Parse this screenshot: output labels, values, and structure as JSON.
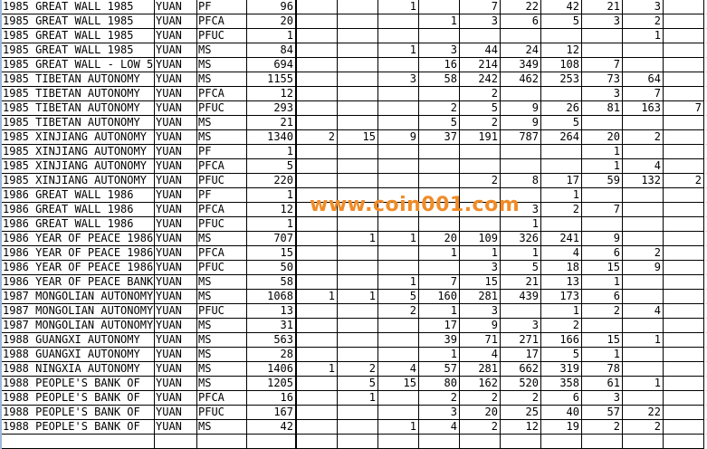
{
  "watermark": "www.coin001.com",
  "watermark_color": "#f08c28",
  "rows": [
    {
      "name": "1985 GREAT WALL 1985",
      "unit": "YUAN",
      "grade": "PF",
      "total": "96",
      "cols": [
        "",
        "",
        "1",
        "",
        "7",
        "22",
        "42",
        "21",
        "3",
        ""
      ]
    },
    {
      "name": "1985 GREAT WALL 1985",
      "unit": "YUAN",
      "grade": "PFCA",
      "total": "20",
      "cols": [
        "",
        "",
        "",
        "1",
        "3",
        "6",
        "5",
        "3",
        "2",
        ""
      ]
    },
    {
      "name": "1985 GREAT WALL 1985",
      "unit": "YUAN",
      "grade": "PFUC",
      "total": "1",
      "cols": [
        "",
        "",
        "",
        "",
        "",
        "",
        "",
        "",
        "1",
        ""
      ]
    },
    {
      "name": "1985 GREAT WALL 1985",
      "unit": "YUAN",
      "grade": "MS",
      "total": "84",
      "cols": [
        "",
        "",
        "1",
        "3",
        "44",
        "24",
        "12",
        "",
        "",
        ""
      ]
    },
    {
      "name": "1985 GREAT WALL - LOW 5",
      "unit": "YUAN",
      "grade": "MS",
      "total": "694",
      "cols": [
        "",
        "",
        "",
        "16",
        "214",
        "349",
        "108",
        "7",
        "",
        ""
      ]
    },
    {
      "name": "1985 TIBETAN AUTONOMY",
      "unit": "YUAN",
      "grade": "MS",
      "total": "1155",
      "cols": [
        "",
        "",
        "3",
        "58",
        "242",
        "462",
        "253",
        "73",
        "64",
        ""
      ]
    },
    {
      "name": "1985 TIBETAN AUTONOMY",
      "unit": "YUAN",
      "grade": "PFCA",
      "total": "12",
      "cols": [
        "",
        "",
        "",
        "",
        "2",
        "",
        "",
        "3",
        "7",
        ""
      ]
    },
    {
      "name": "1985 TIBETAN AUTONOMY",
      "unit": "YUAN",
      "grade": "PFUC",
      "total": "293",
      "cols": [
        "",
        "",
        "",
        "2",
        "5",
        "9",
        "26",
        "81",
        "163",
        "7"
      ]
    },
    {
      "name": "1985 TIBETAN AUTONOMY",
      "unit": "YUAN",
      "grade": "MS",
      "total": "21",
      "cols": [
        "",
        "",
        "",
        "5",
        "2",
        "9",
        "5",
        "",
        "",
        ""
      ]
    },
    {
      "name": "1985 XINJIANG AUTONOMY",
      "unit": "YUAN",
      "grade": "MS",
      "total": "1340",
      "cols": [
        "2",
        "15",
        "9",
        "37",
        "191",
        "787",
        "264",
        "20",
        "2",
        ""
      ]
    },
    {
      "name": "1985 XINJIANG AUTONOMY",
      "unit": "YUAN",
      "grade": "PF",
      "total": "1",
      "cols": [
        "",
        "",
        "",
        "",
        "",
        "",
        "",
        "1",
        "",
        ""
      ]
    },
    {
      "name": "1985 XINJIANG AUTONOMY",
      "unit": "YUAN",
      "grade": "PFCA",
      "total": "5",
      "cols": [
        "",
        "",
        "",
        "",
        "",
        "",
        "",
        "1",
        "4",
        ""
      ]
    },
    {
      "name": "1985 XINJIANG AUTONOMY",
      "unit": "YUAN",
      "grade": "PFUC",
      "total": "220",
      "cols": [
        "",
        "",
        "",
        "",
        "2",
        "8",
        "17",
        "59",
        "132",
        "2"
      ]
    },
    {
      "name": "1986 GREAT WALL 1986",
      "unit": "YUAN",
      "grade": "PF",
      "total": "1",
      "cols": [
        "",
        "",
        "",
        "",
        "",
        "",
        "1",
        "",
        "",
        ""
      ]
    },
    {
      "name": "1986 GREAT WALL 1986",
      "unit": "YUAN",
      "grade": "PFCA",
      "total": "12",
      "cols": [
        "",
        "",
        "",
        "",
        "",
        "3",
        "2",
        "7",
        "",
        ""
      ]
    },
    {
      "name": "1986 GREAT WALL 1986",
      "unit": "YUAN",
      "grade": "PFUC",
      "total": "1",
      "cols": [
        "",
        "",
        "",
        "",
        "",
        "1",
        "",
        "",
        "",
        ""
      ]
    },
    {
      "name": "1986 YEAR OF PEACE 1986",
      "unit": "YUAN",
      "grade": "MS",
      "total": "707",
      "cols": [
        "",
        "1",
        "1",
        "20",
        "109",
        "326",
        "241",
        "9",
        "",
        ""
      ]
    },
    {
      "name": "1986 YEAR OF PEACE 1986",
      "unit": "YUAN",
      "grade": "PFCA",
      "total": "15",
      "cols": [
        "",
        "",
        "",
        "1",
        "1",
        "1",
        "4",
        "6",
        "2",
        ""
      ]
    },
    {
      "name": "1986 YEAR OF PEACE 1986",
      "unit": "YUAN",
      "grade": "PFUC",
      "total": "50",
      "cols": [
        "",
        "",
        "",
        "",
        "3",
        "5",
        "18",
        "15",
        "9",
        ""
      ]
    },
    {
      "name": "1986 YEAR OF PEACE BANK",
      "unit": "YUAN",
      "grade": "MS",
      "total": "58",
      "cols": [
        "",
        "",
        "1",
        "7",
        "15",
        "21",
        "13",
        "1",
        "",
        ""
      ]
    },
    {
      "name": "1987 MONGOLIAN AUTONOMY",
      "unit": "YUAN",
      "grade": "MS",
      "total": "1068",
      "cols": [
        "1",
        "1",
        "5",
        "160",
        "281",
        "439",
        "173",
        "6",
        "",
        ""
      ]
    },
    {
      "name": "1987 MONGOLIAN AUTONOMY",
      "unit": "YUAN",
      "grade": "PFUC",
      "total": "13",
      "cols": [
        "",
        "",
        "2",
        "1",
        "3",
        "",
        "1",
        "2",
        "4",
        ""
      ]
    },
    {
      "name": "1987 MONGOLIAN AUTONOMY",
      "unit": "YUAN",
      "grade": "MS",
      "total": "31",
      "cols": [
        "",
        "",
        "",
        "17",
        "9",
        "3",
        "2",
        "",
        "",
        ""
      ]
    },
    {
      "name": "1988 GUANGXI AUTONOMY",
      "unit": "YUAN",
      "grade": "MS",
      "total": "563",
      "cols": [
        "",
        "",
        "",
        "39",
        "71",
        "271",
        "166",
        "15",
        "1",
        ""
      ]
    },
    {
      "name": "1988 GUANGXI AUTONOMY",
      "unit": "YUAN",
      "grade": "MS",
      "total": "28",
      "cols": [
        "",
        "",
        "",
        "1",
        "4",
        "17",
        "5",
        "1",
        "",
        ""
      ]
    },
    {
      "name": "1988 NINGXIA AUTONOMY",
      "unit": "YUAN",
      "grade": "MS",
      "total": "1406",
      "cols": [
        "1",
        "2",
        "4",
        "57",
        "281",
        "662",
        "319",
        "78",
        "",
        ""
      ]
    },
    {
      "name": "1988 PEOPLE'S BANK OF",
      "unit": "YUAN",
      "grade": "MS",
      "total": "1205",
      "cols": [
        "",
        "5",
        "15",
        "80",
        "162",
        "520",
        "358",
        "61",
        "1",
        ""
      ]
    },
    {
      "name": "1988 PEOPLE'S BANK OF",
      "unit": "YUAN",
      "grade": "PFCA",
      "total": "16",
      "cols": [
        "",
        "1",
        "",
        "2",
        "2",
        "2",
        "6",
        "3",
        "",
        ""
      ]
    },
    {
      "name": "1988 PEOPLE'S BANK OF",
      "unit": "YUAN",
      "grade": "PFUC",
      "total": "167",
      "cols": [
        "",
        "",
        "",
        "3",
        "20",
        "25",
        "40",
        "57",
        "22",
        ""
      ]
    },
    {
      "name": "1988 PEOPLE'S BANK OF",
      "unit": "YUAN",
      "grade": "MS",
      "total": "42",
      "cols": [
        "",
        "",
        "1",
        "4",
        "2",
        "12",
        "19",
        "2",
        "2",
        ""
      ]
    }
  ]
}
